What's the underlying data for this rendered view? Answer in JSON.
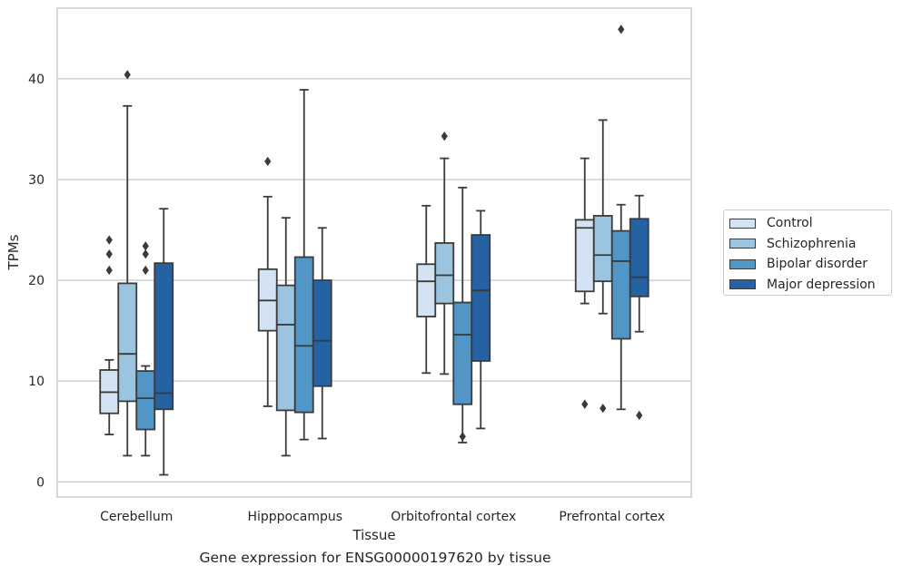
{
  "chart_data": {
    "type": "box",
    "caption": "Gene expression for ENSG00000197620 by tissue",
    "xlabel": "Tissue",
    "ylabel": "TPMs",
    "ylim": [
      -1.5,
      47
    ],
    "yticks": [
      0,
      10,
      20,
      30,
      40
    ],
    "grid": "horizontal",
    "legend_position": "right",
    "categories": [
      "Cerebellum",
      "Hipppocampus",
      "Orbitofrontal cortex",
      "Prefrontal cortex"
    ],
    "series": [
      {
        "name": "Control",
        "color": "#d4e3f3",
        "boxes": [
          {
            "whislo": 4.7,
            "q1": 6.8,
            "med": 8.9,
            "q3": 11.1,
            "whishi": 12.1,
            "fliers": [
              21.0,
              22.6,
              24.0
            ]
          },
          {
            "whislo": 7.5,
            "q1": 15.0,
            "med": 18.0,
            "q3": 21.1,
            "whishi": 28.3,
            "fliers": [
              31.8
            ]
          },
          {
            "whislo": 10.8,
            "q1": 16.4,
            "med": 19.9,
            "q3": 21.6,
            "whishi": 27.4,
            "fliers": []
          },
          {
            "whislo": 17.7,
            "q1": 18.9,
            "med": 25.2,
            "q3": 26.0,
            "whishi": 32.1,
            "fliers": [
              7.7
            ]
          }
        ]
      },
      {
        "name": "Schizophrenia",
        "color": "#9ac4df",
        "boxes": [
          {
            "whislo": 2.6,
            "q1": 8.0,
            "med": 12.7,
            "q3": 19.7,
            "whishi": 37.3,
            "fliers": [
              40.4
            ]
          },
          {
            "whislo": 2.6,
            "q1": 7.1,
            "med": 15.6,
            "q3": 19.5,
            "whishi": 26.2,
            "fliers": []
          },
          {
            "whislo": 10.7,
            "q1": 17.7,
            "med": 20.5,
            "q3": 23.7,
            "whishi": 32.1,
            "fliers": [
              34.3
            ]
          },
          {
            "whislo": 16.7,
            "q1": 19.9,
            "med": 22.5,
            "q3": 26.4,
            "whishi": 35.9,
            "fliers": [
              7.3
            ]
          }
        ]
      },
      {
        "name": "Bipolar disorder",
        "color": "#5296c7",
        "boxes": [
          {
            "whislo": 2.6,
            "q1": 5.2,
            "med": 8.3,
            "q3": 11.0,
            "whishi": 11.5,
            "fliers": [
              21.0,
              22.6,
              23.4
            ]
          },
          {
            "whislo": 4.2,
            "q1": 6.9,
            "med": 13.5,
            "q3": 22.3,
            "whishi": 38.9,
            "fliers": []
          },
          {
            "whislo": 3.9,
            "q1": 7.7,
            "med": 14.6,
            "q3": 17.8,
            "whishi": 29.2,
            "fliers": [
              4.5
            ]
          },
          {
            "whislo": 7.2,
            "q1": 14.2,
            "med": 21.9,
            "q3": 24.9,
            "whishi": 27.5,
            "fliers": [
              44.9
            ]
          }
        ]
      },
      {
        "name": "Major depression",
        "color": "#2462a4",
        "boxes": [
          {
            "whislo": 0.7,
            "q1": 7.2,
            "med": 8.8,
            "q3": 21.7,
            "whishi": 27.1,
            "fliers": []
          },
          {
            "whislo": 4.3,
            "q1": 9.5,
            "med": 14.0,
            "q3": 20.0,
            "whishi": 25.2,
            "fliers": []
          },
          {
            "whislo": 5.3,
            "q1": 12.0,
            "med": 19.0,
            "q3": 24.5,
            "whishi": 26.9,
            "fliers": []
          },
          {
            "whislo": 14.9,
            "q1": 18.4,
            "med": 20.3,
            "q3": 26.1,
            "whishi": 28.4,
            "fliers": [
              6.6
            ]
          }
        ]
      }
    ]
  }
}
